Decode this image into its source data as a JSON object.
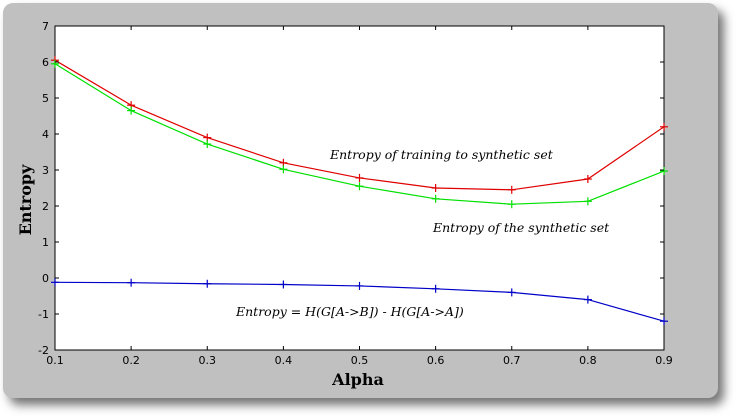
{
  "chart_data": {
    "type": "line",
    "x": [
      0.1,
      0.2,
      0.3,
      0.4,
      0.5,
      0.6,
      0.7,
      0.8,
      0.9
    ],
    "xlabel": "Alpha",
    "ylabel": "Entropy",
    "xlim": [
      0.1,
      0.9
    ],
    "ylim": [
      -2,
      7
    ],
    "xticks": [
      "0.1",
      "0.2",
      "0.3",
      "0.4",
      "0.5",
      "0.6",
      "0.7",
      "0.8",
      "0.9"
    ],
    "yticks": [
      "-2",
      "-1",
      "0",
      "1",
      "2",
      "3",
      "4",
      "5",
      "6",
      "7"
    ],
    "grid": false,
    "series": [
      {
        "name": "Entropy of training to synthetic set",
        "color": "#e00000",
        "marker": "+",
        "values": [
          6.05,
          4.8,
          3.9,
          3.2,
          2.78,
          2.5,
          2.45,
          2.75,
          4.2
        ]
      },
      {
        "name": "Entropy of the synthetic set",
        "color": "#00e000",
        "marker": "+",
        "values": [
          5.95,
          4.65,
          3.72,
          3.02,
          2.55,
          2.2,
          2.05,
          2.13,
          2.97
        ]
      },
      {
        "name": "Entropy = H(G[A->B]) - H(G[A->A])",
        "color": "#0000c8",
        "marker": "+",
        "values": [
          -0.12,
          -0.13,
          -0.16,
          -0.18,
          -0.22,
          -0.3,
          -0.4,
          -0.6,
          -1.2
        ]
      }
    ],
    "annotations": [
      "Entropy of training to synthetic set",
      "Entropy of the synthetic set",
      "Entropy = H(G[A->B]) - H(G[A->A])"
    ]
  }
}
